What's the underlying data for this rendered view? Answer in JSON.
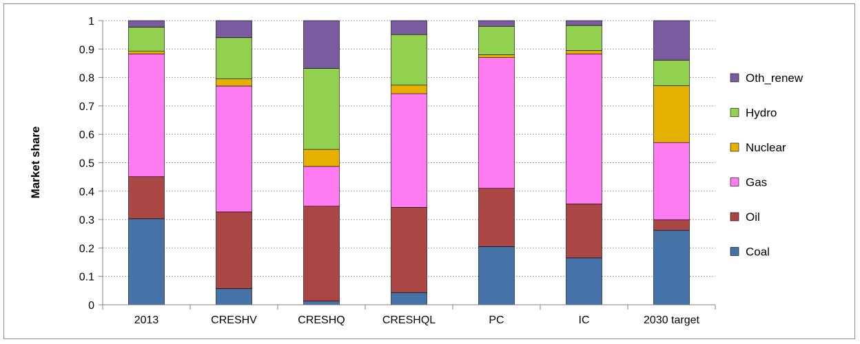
{
  "chart_data": {
    "type": "bar",
    "stacked": true,
    "ylabel": "Market share",
    "xlabel": "",
    "ylim": [
      0,
      1
    ],
    "yticks": [
      "0",
      "0.1",
      "0.2",
      "0.3",
      "0.4",
      "0.5",
      "0.6",
      "0.7",
      "0.8",
      "0.9",
      "1"
    ],
    "grid": true,
    "legend_position": "right",
    "categories": [
      "2013",
      "CRESHV",
      "CRESHQ",
      "CRESHQL",
      "PC",
      "IC",
      "2030 target"
    ],
    "series": [
      {
        "name": "Coal",
        "color": "#4572A7",
        "values": [
          0.303,
          0.057,
          0.013,
          0.043,
          0.205,
          0.165,
          0.262
        ]
      },
      {
        "name": "Oil",
        "color": "#AA4643",
        "values": [
          0.148,
          0.27,
          0.334,
          0.3,
          0.205,
          0.19,
          0.037
        ]
      },
      {
        "name": "Gas",
        "color": "#FF7BF2",
        "values": [
          0.432,
          0.443,
          0.14,
          0.4,
          0.46,
          0.528,
          0.272
        ]
      },
      {
        "name": "Nuclear",
        "color": "#E5B000",
        "values": [
          0.01,
          0.025,
          0.06,
          0.03,
          0.01,
          0.012,
          0.2
        ]
      },
      {
        "name": "Hydro",
        "color": "#92D050",
        "values": [
          0.084,
          0.145,
          0.285,
          0.178,
          0.1,
          0.088,
          0.09
        ]
      },
      {
        "name": "Oth_renew",
        "color": "#7B5BA0",
        "values": [
          0.023,
          0.06,
          0.168,
          0.049,
          0.02,
          0.017,
          0.139
        ]
      }
    ]
  }
}
